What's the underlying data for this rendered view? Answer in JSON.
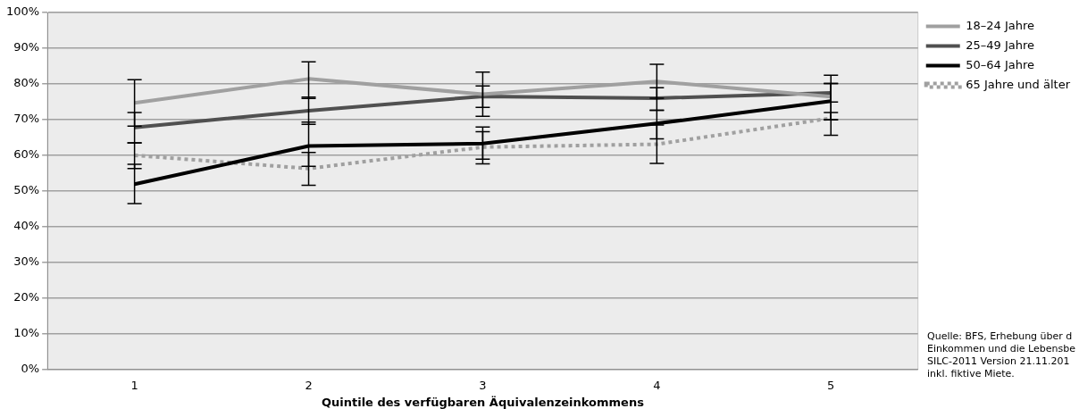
{
  "chart_data": {
    "type": "line",
    "xlabel": "Quintile des verfügbaren Äquivalenzeinkommens",
    "categories": [
      "1",
      "2",
      "3",
      "4",
      "5"
    ],
    "ylim": [
      0,
      100
    ],
    "yticks": [
      {
        "value": 0,
        "label": "0%"
      },
      {
        "value": 10,
        "label": "10%"
      },
      {
        "value": 20,
        "label": "20%"
      },
      {
        "value": 30,
        "label": "30%"
      },
      {
        "value": 40,
        "label": "40%"
      },
      {
        "value": 50,
        "label": "50%"
      },
      {
        "value": 60,
        "label": "60%"
      },
      {
        "value": 70,
        "label": "70%"
      },
      {
        "value": 80,
        "label": "80%"
      },
      {
        "value": 90,
        "label": "90%"
      },
      {
        "value": 100,
        "label": "100%"
      }
    ],
    "grid": "y",
    "legend": "top right",
    "marker": "none",
    "series": [
      {
        "name": "18–24 Jahre",
        "color": "#a0a0a0",
        "line_style": "solid",
        "values": [
          74.7,
          81.4,
          77.1,
          80.7,
          76.4
        ],
        "errors": [
          [
            68.2,
            81.2
          ],
          [
            75.9,
            86.2
          ],
          [
            70.9,
            83.3
          ],
          [
            76,
            85.5
          ],
          [
            70,
            82.4
          ]
        ]
      },
      {
        "name": "25–49 Jahre",
        "color": "#505050",
        "line_style": "solid",
        "values": [
          67.8,
          72.5,
          76.5,
          76,
          77.5
        ],
        "errors": [
          [
            63.5,
            72
          ],
          [
            68.7,
            76.3
          ],
          [
            73.4,
            79.4
          ],
          [
            72.6,
            78.9
          ],
          [
            74.9,
            80.1
          ]
        ]
      },
      {
        "name": "50–64 Jahre",
        "color": "#000000",
        "line_style": "solid",
        "values": [
          51.9,
          62.6,
          63.3,
          68.9,
          75.2
        ],
        "errors": [
          [
            46.5,
            57.5
          ],
          [
            56.9,
            69.3
          ],
          [
            58.9,
            67.9
          ],
          [
            64.6,
            72.6
          ],
          [
            65.6,
            80.1
          ]
        ]
      },
      {
        "name": "65 Jahre und älter",
        "color": "#a0a0a0",
        "line_style": "dotted",
        "values": [
          60,
          56.3,
          62.3,
          63.1,
          70.4
        ],
        "errors": [
          [
            56.3,
            63.5
          ],
          [
            51.6,
            60.8
          ],
          [
            57.6,
            66.6
          ],
          [
            57.7,
            68.5
          ],
          [
            69.9,
            72
          ]
        ]
      }
    ],
    "annotations": [
      "Quelle: BFS, Erhebung über d",
      "Einkommen und die Lebensbe",
      "SILC-2011 Version 21.11.201",
      "inkl. fiktive Miete."
    ]
  }
}
